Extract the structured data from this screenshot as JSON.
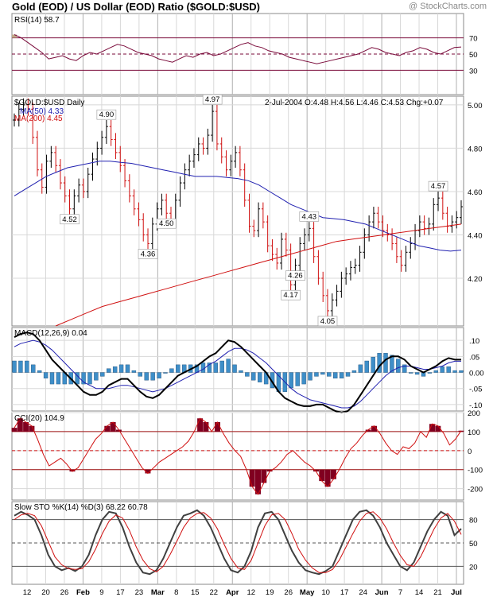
{
  "header": {
    "title": "Gold (EOD) / US Dollar (EOD) Ratio ($GOLD:$USD)",
    "credit": "@ StockCharts.com"
  },
  "colors": {
    "price_up": "#000000",
    "price_down": "#d01010",
    "ma50": "#2020b0",
    "ma200": "#d01010",
    "rsi_line": "#7a0a3a",
    "rsi_fill": "#bfa888",
    "macd_line": "#000000",
    "macd_signal": "#2020b0",
    "macd_hist": "#3e8ec8",
    "cci_line": "#d01010",
    "cci_fill": "#800020",
    "sto_k": "#404040",
    "sto_d": "#d01010",
    "grid": "#d8d8d8"
  },
  "chart_data": {
    "type": "stock-chart",
    "x_axis": {
      "labels": [
        "12",
        "20",
        "26",
        "Feb",
        "9",
        "17",
        "23",
        "Mar",
        "8",
        "15",
        "22",
        "Apr",
        "12",
        "19",
        "26",
        "May",
        "10",
        "17",
        "24",
        "Jun",
        "7",
        "14",
        "21",
        "Jul"
      ],
      "months": [
        "Feb",
        "Mar",
        "Apr",
        "May",
        "Jun",
        "Jul"
      ]
    },
    "rsi": {
      "label": "RSI(14) 58.7",
      "ylim": [
        0,
        100
      ],
      "levels": [
        70,
        50,
        30
      ],
      "level_labels": [
        "70",
        "50",
        "30"
      ],
      "values": [
        74,
        70,
        64,
        58,
        52,
        44,
        46,
        48,
        44,
        42,
        48,
        52,
        50,
        54,
        58,
        62,
        60,
        56,
        52,
        50,
        48,
        44,
        42,
        40,
        44,
        48,
        46,
        50,
        52,
        48,
        50,
        54,
        58,
        62,
        64,
        60,
        58,
        54,
        52,
        50,
        46,
        44,
        42,
        40,
        38,
        40,
        42,
        44,
        46,
        48,
        50,
        54,
        58,
        56,
        52,
        50,
        48,
        52,
        54,
        58,
        56,
        52,
        50,
        54,
        58,
        58.7
      ]
    },
    "price": {
      "label": "$GOLD:$USD Daily",
      "ohlc_text": "2-Jul-2004 O:4.48 H:4.56 L:4.46 C:4.53 Chg:+0.07",
      "ma50_label": "MA(50) 4.33",
      "ma200_label": "MA(200) 4.45",
      "ylim": [
        4.0,
        5.0
      ],
      "ticks": [
        4.2,
        4.4,
        4.6,
        4.8,
        5.0
      ],
      "tick_labels": [
        "4.20",
        "4.40",
        "4.60",
        "4.80",
        "5.00"
      ],
      "closes": [
        4.93,
        4.98,
        5.0,
        4.98,
        4.85,
        4.7,
        4.62,
        4.74,
        4.78,
        4.72,
        4.64,
        4.58,
        4.52,
        4.58,
        4.63,
        4.6,
        4.68,
        4.75,
        4.8,
        4.85,
        4.9,
        4.84,
        4.78,
        4.72,
        4.65,
        4.58,
        4.52,
        4.47,
        4.4,
        4.36,
        4.45,
        4.52,
        4.56,
        4.5,
        4.47,
        4.56,
        4.64,
        4.7,
        4.74,
        4.77,
        4.82,
        4.8,
        4.86,
        4.97,
        4.82,
        4.76,
        4.7,
        4.74,
        4.78,
        4.7,
        4.56,
        4.44,
        4.42,
        4.52,
        4.46,
        4.35,
        4.31,
        4.27,
        4.38,
        4.33,
        4.17,
        4.26,
        4.36,
        4.4,
        4.43,
        4.3,
        4.2,
        4.12,
        4.05,
        4.1,
        4.14,
        4.2,
        4.22,
        4.25,
        4.26,
        4.32,
        4.4,
        4.46,
        4.5,
        4.46,
        4.42,
        4.4,
        4.36,
        4.3,
        4.26,
        4.32,
        4.36,
        4.42,
        4.46,
        4.43,
        4.45,
        4.54,
        4.57,
        4.5,
        4.44,
        4.46,
        4.48,
        4.53
      ],
      "ma50": [
        4.58,
        4.61,
        4.64,
        4.67,
        4.69,
        4.71,
        4.72,
        4.73,
        4.74,
        4.74,
        4.735,
        4.73,
        4.72,
        4.71,
        4.7,
        4.69,
        4.68,
        4.67,
        4.67,
        4.67,
        4.665,
        4.66,
        4.65,
        4.63,
        4.6,
        4.57,
        4.54,
        4.52,
        4.5,
        4.48,
        4.475,
        4.47,
        4.46,
        4.45,
        4.43,
        4.41,
        4.39,
        4.37,
        4.35,
        4.34,
        4.33,
        4.325,
        4.33
      ],
      "ma200": [
        3.98,
        4.01,
        4.04,
        4.07,
        4.09,
        4.11,
        4.13,
        4.15,
        4.17,
        4.19,
        4.21,
        4.23,
        4.25,
        4.27,
        4.29,
        4.31,
        4.33,
        4.35,
        4.37,
        4.38,
        4.39,
        4.4,
        4.41,
        4.42,
        4.43,
        4.44,
        4.45
      ],
      "annotations": [
        {
          "text": "4.90",
          "value": 4.9
        },
        {
          "text": "4.52",
          "value": 4.52
        },
        {
          "text": "4.36",
          "value": 4.36
        },
        {
          "text": "4.97",
          "value": 4.97
        },
        {
          "text": "4.17",
          "value": 4.17
        },
        {
          "text": "4.43",
          "value": 4.43
        },
        {
          "text": "4.05",
          "value": 4.05
        },
        {
          "text": "4.50",
          "value": 4.5
        },
        {
          "text": "4.26",
          "value": 4.26
        },
        {
          "text": "4.57",
          "value": 4.57
        }
      ]
    },
    "macd": {
      "label": "MACD(12,26,9) 0.04",
      "ylim": [
        -0.12,
        0.14
      ],
      "ticks": [
        0.1,
        0.05,
        0.0,
        -0.05,
        -0.1
      ],
      "tick_labels": [
        ".10",
        ".05",
        "0.00",
        "-.05",
        "-.10"
      ],
      "macd": [
        0.11,
        0.12,
        0.125,
        0.12,
        0.1,
        0.07,
        0.04,
        0.02,
        0.0,
        -0.02,
        -0.04,
        -0.06,
        -0.07,
        -0.07,
        -0.06,
        -0.04,
        -0.03,
        -0.02,
        -0.02,
        -0.04,
        -0.06,
        -0.075,
        -0.08,
        -0.07,
        -0.05,
        -0.03,
        -0.01,
        0.0,
        0.01,
        0.02,
        0.035,
        0.05,
        0.06,
        0.08,
        0.1,
        0.095,
        0.08,
        0.06,
        0.04,
        0.02,
        0.0,
        -0.03,
        -0.06,
        -0.08,
        -0.09,
        -0.1,
        -0.105,
        -0.105,
        -0.1,
        -0.1,
        -0.11,
        -0.12,
        -0.125,
        -0.12,
        -0.1,
        -0.07,
        -0.04,
        -0.01,
        0.02,
        0.04,
        0.05,
        0.05,
        0.04,
        0.02,
        0.01,
        0.0,
        0.01,
        0.02,
        0.035,
        0.045,
        0.04,
        0.04
      ],
      "signal": [
        0.08,
        0.09,
        0.095,
        0.1,
        0.095,
        0.085,
        0.07,
        0.05,
        0.03,
        0.01,
        -0.01,
        -0.03,
        -0.04,
        -0.05,
        -0.05,
        -0.05,
        -0.045,
        -0.04,
        -0.04,
        -0.045,
        -0.05,
        -0.055,
        -0.06,
        -0.055,
        -0.05,
        -0.04,
        -0.03,
        -0.02,
        -0.01,
        0.0,
        0.01,
        0.025,
        0.035,
        0.05,
        0.065,
        0.075,
        0.075,
        0.07,
        0.06,
        0.045,
        0.03,
        0.01,
        -0.01,
        -0.03,
        -0.05,
        -0.065,
        -0.075,
        -0.085,
        -0.09,
        -0.095,
        -0.1,
        -0.105,
        -0.11,
        -0.11,
        -0.105,
        -0.09,
        -0.07,
        -0.05,
        -0.03,
        -0.01,
        0.005,
        0.015,
        0.02,
        0.02,
        0.015,
        0.01,
        0.01,
        0.015,
        0.02,
        0.03,
        0.035,
        0.035
      ]
    },
    "cci": {
      "label": "CCI(20) 104.9",
      "ylim": [
        -260,
        200
      ],
      "ticks": [
        200,
        100,
        0,
        -100,
        -200
      ],
      "tick_labels": [
        "200",
        "100",
        "0",
        "-100",
        "-200"
      ],
      "levels": [
        100,
        -100
      ],
      "values": [
        120,
        170,
        150,
        130,
        60,
        -20,
        -80,
        -60,
        -40,
        -70,
        -110,
        -90,
        -40,
        10,
        60,
        90,
        130,
        150,
        110,
        60,
        10,
        -40,
        -90,
        -120,
        -90,
        -60,
        -40,
        -20,
        0,
        20,
        50,
        100,
        170,
        150,
        100,
        150,
        90,
        40,
        0,
        -30,
        -100,
        -190,
        -230,
        -170,
        -110,
        -90,
        -60,
        -20,
        0,
        -30,
        -60,
        -80,
        -110,
        -160,
        -190,
        -150,
        -100,
        -40,
        10,
        40,
        80,
        110,
        130,
        90,
        40,
        0,
        -20,
        20,
        10,
        40,
        100,
        70,
        140,
        130,
        90,
        30,
        60,
        104.9
      ]
    },
    "stochastic": {
      "label": "Slow STO %K(14) %D(3) 68.22 60.78",
      "ylim": [
        0,
        100
      ],
      "levels": [
        80,
        50,
        20
      ],
      "level_labels": [
        "80",
        "50",
        "20"
      ],
      "k": [
        85,
        90,
        86,
        80,
        60,
        35,
        20,
        15,
        18,
        14,
        20,
        35,
        60,
        80,
        90,
        88,
        70,
        45,
        25,
        12,
        10,
        15,
        30,
        50,
        70,
        85,
        88,
        92,
        85,
        70,
        50,
        30,
        15,
        12,
        20,
        40,
        70,
        88,
        90,
        80,
        60,
        40,
        25,
        15,
        12,
        10,
        14,
        20,
        40,
        60,
        80,
        90,
        92,
        85,
        70,
        50,
        35,
        20,
        15,
        25,
        45,
        65,
        80,
        90,
        85,
        60,
        68.22
      ],
      "d": [
        80,
        86,
        88,
        85,
        72,
        52,
        32,
        22,
        17,
        16,
        17,
        26,
        42,
        62,
        78,
        86,
        82,
        66,
        45,
        28,
        17,
        13,
        20,
        35,
        52,
        70,
        82,
        88,
        89,
        82,
        68,
        48,
        30,
        18,
        16,
        28,
        50,
        72,
        86,
        88,
        80,
        62,
        42,
        28,
        18,
        12,
        12,
        16,
        28,
        45,
        62,
        78,
        88,
        90,
        82,
        68,
        50,
        34,
        22,
        20,
        32,
        50,
        68,
        82,
        88,
        78,
        60.78
      ]
    }
  }
}
